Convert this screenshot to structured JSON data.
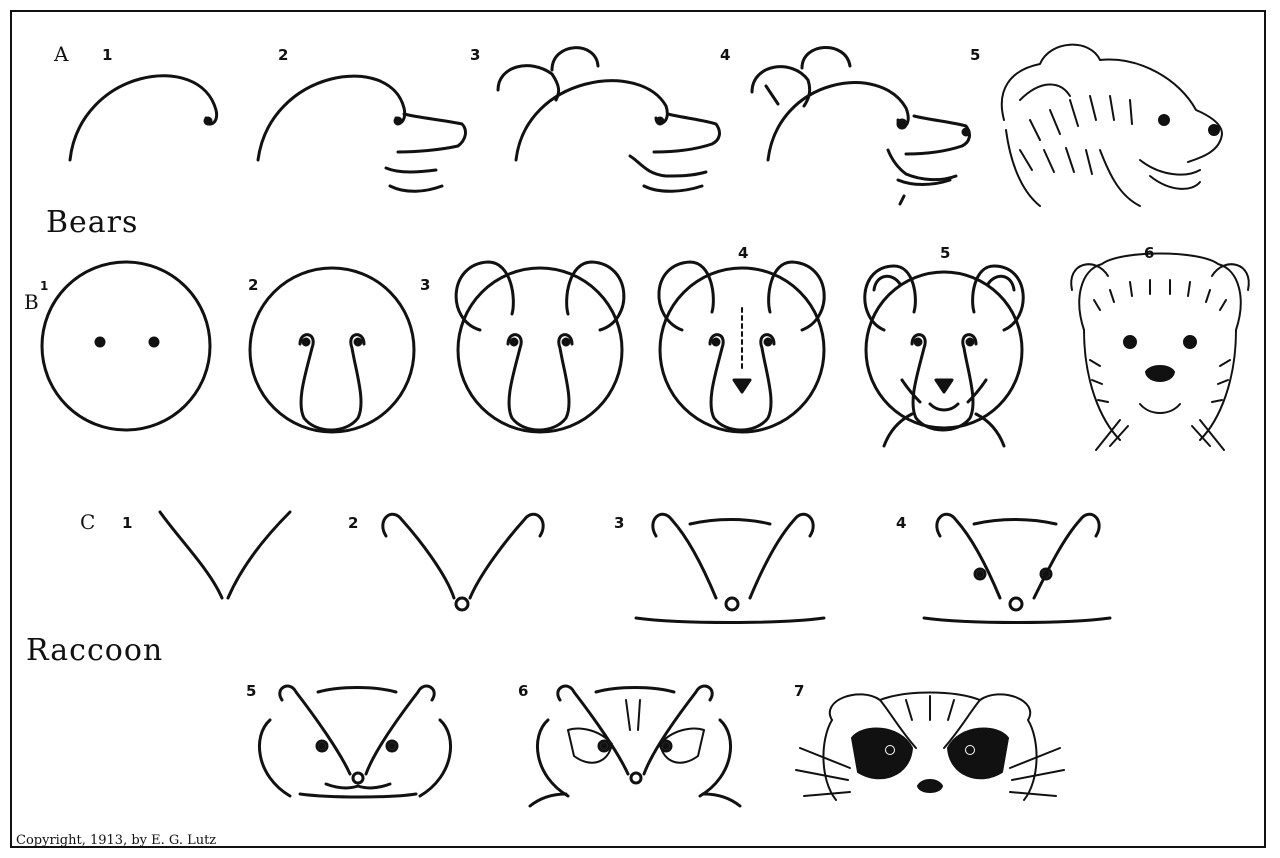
{
  "labels": {
    "section_a": "A",
    "section_b": "B",
    "section_c": "C",
    "title_bears": "Bears",
    "title_raccoon": "Raccoon",
    "copyright": "Copyright, 1913, by E. G. Lutz"
  },
  "steps": {
    "a": [
      "1",
      "2",
      "3",
      "4",
      "5"
    ],
    "b": [
      "1",
      "2",
      "3",
      "4",
      "5",
      "6"
    ],
    "c_top": [
      "1",
      "2",
      "3",
      "4"
    ],
    "c_bottom": [
      "5",
      "6",
      "7"
    ]
  },
  "colors": {
    "ink": "#111111",
    "paper": "#ffffff"
  }
}
